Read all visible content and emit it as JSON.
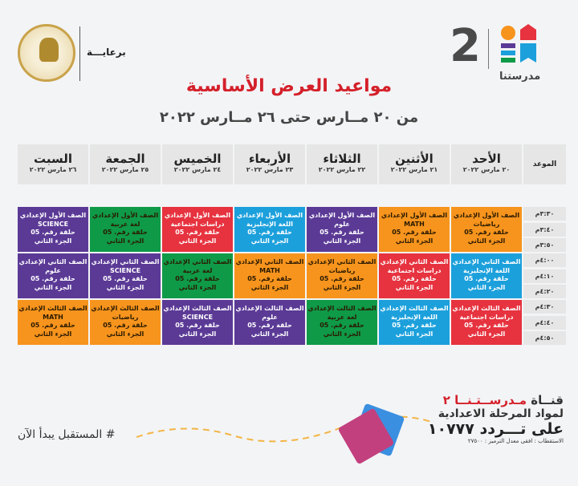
{
  "sponsor_label": "برعايـــة",
  "brand": {
    "number": "2",
    "name": "مدرستنا"
  },
  "title": "مواعيد العرض الأساسية",
  "subtitle": "من ٢٠ مــارس حتى ٢٦ مــارس ٢٠٢٢",
  "time_header": "الموعد",
  "days": [
    {
      "name": "الأحد",
      "date": "٢٠ مارس ٢٠٢٢"
    },
    {
      "name": "الأثنين",
      "date": "٢١ مارس ٢٠٢٢"
    },
    {
      "name": "الثلاثاء",
      "date": "٢٢ مارس ٢٠٢٢"
    },
    {
      "name": "الأربعاء",
      "date": "٢٣ مارس ٢٠٢٢"
    },
    {
      "name": "الخميس",
      "date": "٢٤ مارس ٢٠٢٢"
    },
    {
      "name": "الجمعة",
      "date": "٢٥ مارس ٢٠٢٢"
    },
    {
      "name": "السبت",
      "date": "٢٦ مارس ٢٠٢٢"
    }
  ],
  "times": [
    "٣:٣٠م",
    "٣:٤٠م",
    "٣:٥٠م",
    "٤:٠٠م",
    "٤:١٠م",
    "٤:٢٠م",
    "٤:٣٠م",
    "٤:٤٠م",
    "٤:٥٠م"
  ],
  "colors": {
    "orange": "#f7941d",
    "purple": "#5b3a96",
    "blue": "#1ca0dc",
    "red": "#e6333f",
    "green": "#0f9a48"
  },
  "episode": "حلقة رقم. 05",
  "part": "الجزء الثاني",
  "rows": [
    {
      "grade": "الصف الأول الإعدادي",
      "cells": [
        {
          "subject": "رياضيات",
          "color": "orange"
        },
        {
          "subject": "MATH",
          "color": "orange"
        },
        {
          "subject": "علوم",
          "color": "purple"
        },
        {
          "subject": "اللغة الإنجليزية",
          "color": "blue"
        },
        {
          "subject": "دراسات اجتماعية",
          "color": "red"
        },
        {
          "subject": "لغة عربية",
          "color": "green"
        },
        {
          "subject": "SCIENCE",
          "color": "purple"
        }
      ]
    },
    {
      "grade": "الصف الثاني الإعدادي",
      "cells": [
        {
          "subject": "اللغة الإنجليزية",
          "color": "blue"
        },
        {
          "subject": "دراسات اجتماعية",
          "color": "red"
        },
        {
          "subject": "رياضيات",
          "color": "orange"
        },
        {
          "subject": "MATH",
          "color": "orange"
        },
        {
          "subject": "لغة عربية",
          "color": "green"
        },
        {
          "subject": "SCIENCE",
          "color": "purple"
        },
        {
          "subject": "علوم",
          "color": "purple"
        }
      ]
    },
    {
      "grade": "الصف الثالث الإعدادي",
      "cells": [
        {
          "subject": "دراسات اجتماعية",
          "color": "red"
        },
        {
          "subject": "اللغة الإنجليزية",
          "color": "blue"
        },
        {
          "subject": "لغة عربية",
          "color": "green"
        },
        {
          "subject": "علوم",
          "color": "purple"
        },
        {
          "subject": "SCIENCE",
          "color": "purple"
        },
        {
          "subject": "رياضيات",
          "color": "orange"
        },
        {
          "subject": "MATH",
          "color": "orange"
        }
      ]
    }
  ],
  "footer": {
    "channel_prefix": "قنــاة ",
    "channel_name": "مـدرســتـنــا ٢",
    "line2": "لمواد المرحلة الاعدادية",
    "line3": "على تـــردد ١٠٧٧٧",
    "line4": "الاستقطاب : افقى معدل الترميز : ٢٧٥٠٠"
  },
  "hashtag": "# المستقبل يبدأ الآن"
}
